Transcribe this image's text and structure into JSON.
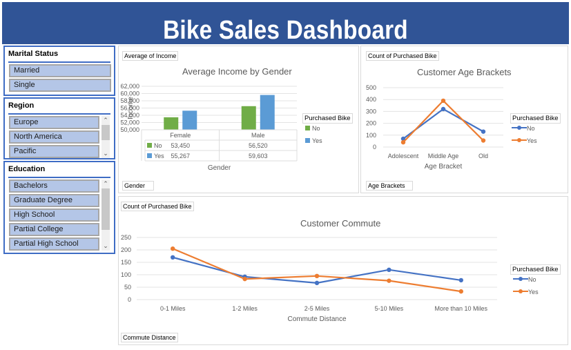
{
  "header": {
    "title": "Bike Sales Dashboard"
  },
  "colors": {
    "banner": "#305496",
    "slicer_border": "#3e6cc4",
    "slicer_item": "#b4c6e7",
    "no_bar": "#70ad47",
    "yes_bar": "#5b9bd5",
    "no_line": "#4472c4",
    "yes_line": "#ed7d31"
  },
  "slicers": {
    "marital_status": {
      "title": "Marital Status",
      "items": [
        "Married",
        "Single"
      ]
    },
    "region": {
      "title": "Region",
      "items": [
        "Europe",
        "North America",
        "Pacific"
      ]
    },
    "education": {
      "title": "Education",
      "items": [
        "Bachelors",
        "Graduate Degree",
        "High School",
        "Partial College",
        "Partial High School"
      ]
    }
  },
  "income_panel": {
    "value_button": "Average of Income",
    "axis_button": "Gender",
    "legend_title": "Purchased Bike"
  },
  "age_panel": {
    "value_button": "Count of Purchased Bike",
    "axis_button": "Age Brackets",
    "legend_title": "Purchased Bike"
  },
  "commute_panel": {
    "value_button": "Count of Purchased Bike",
    "axis_button": "Commute Distance",
    "legend_title": "Purchased Bike"
  },
  "chart_data": [
    {
      "type": "bar",
      "title": "Average Income by Gender",
      "xlabel": "Gender",
      "ylabel": "Income",
      "categories": [
        "Female",
        "Male"
      ],
      "ylim": [
        50000,
        62000
      ],
      "yticks": [
        "50,000",
        "52,000",
        "54,000",
        "56,000",
        "58,000",
        "60,000",
        "62,000"
      ],
      "grid": true,
      "legend": "right",
      "legend_title": "Purchased Bike",
      "series": [
        {
          "name": "No",
          "values": [
            53450,
            56520
          ],
          "labels": [
            "53,450",
            "56,520"
          ]
        },
        {
          "name": "Yes",
          "values": [
            55267,
            59603
          ],
          "labels": [
            "55,267",
            "59,603"
          ]
        }
      ],
      "data_table": true
    },
    {
      "type": "line",
      "title": "Customer Age Brackets",
      "xlabel": "Age Bracket",
      "ylabel": "",
      "categories": [
        "Adolescent",
        "Middle Age",
        "Old"
      ],
      "ylim": [
        0,
        500
      ],
      "yticks": [
        "0",
        "100",
        "200",
        "300",
        "400",
        "500"
      ],
      "grid": true,
      "legend": "right",
      "legend_title": "Purchased Bike",
      "series": [
        {
          "name": "No",
          "values": [
            70,
            320,
            130
          ]
        },
        {
          "name": "Yes",
          "values": [
            40,
            390,
            55
          ]
        }
      ]
    },
    {
      "type": "line",
      "title": "Customer Commute",
      "xlabel": "Commute Distance",
      "ylabel": "",
      "categories": [
        "0-1 Miles",
        "1-2 Miles",
        "2-5 Miles",
        "5-10 Miles",
        "More than 10 Miles"
      ],
      "ylim": [
        0,
        250
      ],
      "yticks": [
        "0",
        "50",
        "100",
        "150",
        "200",
        "250"
      ],
      "grid": true,
      "legend": "right",
      "legend_title": "Purchased Bike",
      "series": [
        {
          "name": "No",
          "values": [
            170,
            92,
            67,
            120,
            78
          ]
        },
        {
          "name": "Yes",
          "values": [
            205,
            83,
            95,
            76,
            33
          ]
        }
      ]
    }
  ]
}
